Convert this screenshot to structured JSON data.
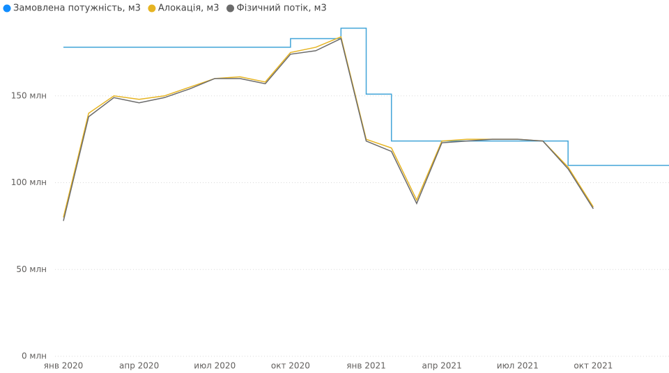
{
  "chart_data": {
    "type": "line",
    "x": [
      "2020-01",
      "2020-02",
      "2020-03",
      "2020-04",
      "2020-05",
      "2020-06",
      "2020-07",
      "2020-08",
      "2020-09",
      "2020-10",
      "2020-11",
      "2020-12",
      "2021-01",
      "2021-02",
      "2021-03",
      "2021-04",
      "2021-05",
      "2021-06",
      "2021-07",
      "2021-08",
      "2021-09",
      "2021-10",
      "2021-11",
      "2021-12"
    ],
    "series": [
      {
        "name": "Замовлена потужність, м3",
        "color": "#118DFF",
        "line_color": "#41A4D8",
        "step": true,
        "values": [
          178,
          178,
          178,
          178,
          178,
          178,
          178,
          178,
          178,
          183,
          183,
          189,
          151,
          124,
          124,
          124,
          124,
          124,
          124,
          124,
          110,
          110,
          110,
          110
        ]
      },
      {
        "name": "Алокація, м3",
        "color": "#E6B422",
        "line_color": "#E6B422",
        "step": false,
        "values": [
          80,
          140,
          150,
          148,
          150,
          155,
          160,
          161,
          158,
          175,
          178,
          184,
          125,
          120,
          90,
          124,
          125,
          125,
          125,
          124,
          109,
          86,
          null,
          null
        ]
      },
      {
        "name": "Фізичний потік, м3",
        "color": "#6B6B6B",
        "line_color": "#6B6B6B",
        "step": false,
        "values": [
          78,
          138,
          149,
          146,
          149,
          154,
          160,
          160,
          157,
          174,
          176,
          183,
          124,
          118,
          88,
          123,
          124,
          125,
          125,
          124,
          108,
          85,
          null,
          null
        ]
      }
    ],
    "xlim": [
      "2020-01",
      "2022-01"
    ],
    "xticks": [
      {
        "value": "2020-01",
        "label": "янв 2020"
      },
      {
        "value": "2020-04",
        "label": "апр 2020"
      },
      {
        "value": "2020-07",
        "label": "июл 2020"
      },
      {
        "value": "2020-10",
        "label": "окт 2020"
      },
      {
        "value": "2021-01",
        "label": "янв 2021"
      },
      {
        "value": "2021-04",
        "label": "апр 2021"
      },
      {
        "value": "2021-07",
        "label": "июл 2021"
      },
      {
        "value": "2021-10",
        "label": "окт 2021"
      }
    ],
    "ylim": [
      0,
      192
    ],
    "yticks": [
      {
        "value": 0,
        "label": "0 млн"
      },
      {
        "value": 50,
        "label": "50 млн"
      },
      {
        "value": 100,
        "label": "100 млн"
      },
      {
        "value": 150,
        "label": "150 млн"
      }
    ],
    "grid": true,
    "legend": "top-left"
  }
}
